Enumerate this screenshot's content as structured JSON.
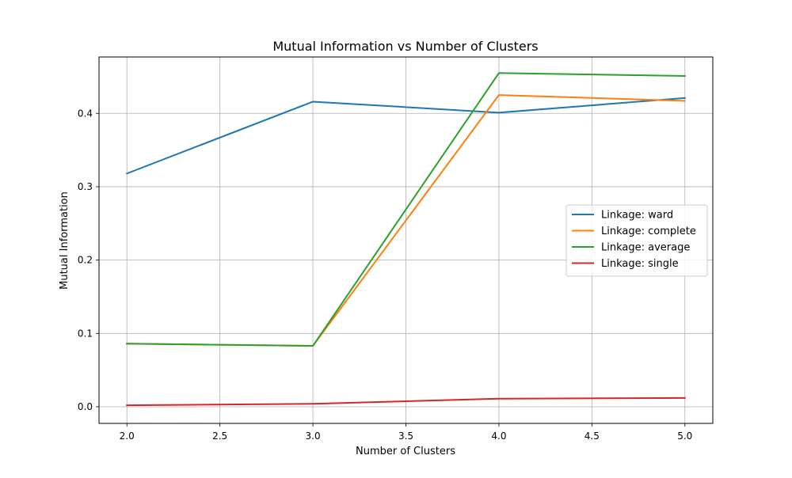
{
  "chart_data": {
    "type": "line",
    "title": "Mutual Information vs Number of Clusters",
    "xlabel": "Number of Clusters",
    "ylabel": "Mutual Information",
    "x": [
      2,
      3,
      4,
      5
    ],
    "xlim": [
      1.85,
      5.15
    ],
    "ylim": [
      -0.0227,
      0.4769
    ],
    "xticks": [
      2.0,
      2.5,
      3.0,
      3.5,
      4.0,
      4.5,
      5.0
    ],
    "xtick_labels": [
      "2.0",
      "2.5",
      "3.0",
      "3.5",
      "4.0",
      "4.5",
      "5.0"
    ],
    "yticks": [
      0.0,
      0.1,
      0.2,
      0.3,
      0.4
    ],
    "ytick_labels": [
      "0.0",
      "0.1",
      "0.2",
      "0.3",
      "0.4"
    ],
    "grid": true,
    "legend_position": "center-right",
    "series": [
      {
        "name": "Linkage: ward",
        "color": "#1f77b4",
        "values": [
          0.318,
          0.416,
          0.401,
          0.421
        ]
      },
      {
        "name": "Linkage: complete",
        "color": "#ff7f0e",
        "values": [
          0.086,
          0.083,
          0.425,
          0.417
        ]
      },
      {
        "name": "Linkage: average",
        "color": "#2ca02c",
        "values": [
          0.086,
          0.083,
          0.455,
          0.451
        ]
      },
      {
        "name": "Linkage: single",
        "color": "#d62728",
        "values": [
          0.002,
          0.004,
          0.011,
          0.012
        ]
      }
    ]
  }
}
